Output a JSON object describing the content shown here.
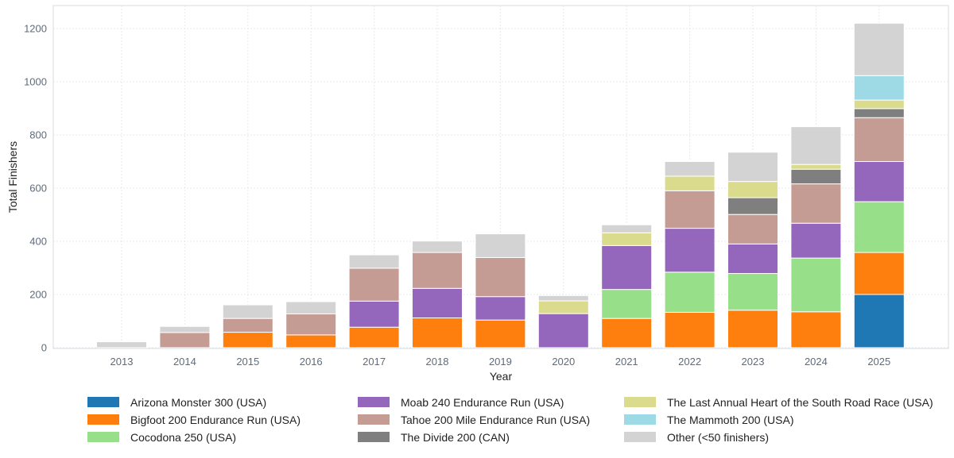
{
  "chart_data": {
    "type": "stacked-bar",
    "xlabel": "Year",
    "ylabel": "Total Finishers",
    "ylim": [
      0,
      1280
    ],
    "yticks": [
      0,
      200,
      400,
      600,
      800,
      1000,
      1200
    ],
    "grid": true,
    "legend_position": "bottom",
    "categories": [
      "2013",
      "2014",
      "2015",
      "2016",
      "2017",
      "2018",
      "2019",
      "2020",
      "2021",
      "2022",
      "2023",
      "2024",
      "2025"
    ],
    "series": [
      {
        "name": "Arizona Monster 300 (USA)",
        "color": "#1f77b4",
        "values": [
          0,
          0,
          0,
          0,
          0,
          0,
          0,
          0,
          0,
          0,
          0,
          0,
          200
        ]
      },
      {
        "name": "Bigfoot 200 Endurance Run (USA)",
        "color": "#ff7f0e",
        "values": [
          0,
          0,
          58,
          48,
          77,
          112,
          104,
          0,
          110,
          133,
          141,
          135,
          158
        ]
      },
      {
        "name": "Cocodona 250 (USA)",
        "color": "#98df8a",
        "values": [
          0,
          0,
          0,
          0,
          0,
          0,
          0,
          0,
          109,
          151,
          138,
          202,
          191
        ]
      },
      {
        "name": "Moab 240 Endurance Run (USA)",
        "color": "#9467bd",
        "values": [
          0,
          0,
          0,
          0,
          98,
          111,
          88,
          128,
          165,
          165,
          111,
          131,
          151
        ]
      },
      {
        "name": "Tahoe 200 Mile Endurance Run (USA)",
        "color": "#c49c94",
        "values": [
          0,
          57,
          52,
          79,
          124,
          135,
          147,
          0,
          0,
          141,
          111,
          148,
          165
        ]
      },
      {
        "name": "The Divide 200 (CAN)",
        "color": "#7f7f7f",
        "values": [
          0,
          0,
          0,
          0,
          0,
          0,
          0,
          0,
          0,
          0,
          63,
          55,
          34
        ]
      },
      {
        "name": "The Last Annual Heart of the South Road Race (USA)",
        "color": "#dbdb8d",
        "values": [
          0,
          0,
          0,
          0,
          0,
          0,
          0,
          48,
          48,
          55,
          61,
          18,
          32
        ]
      },
      {
        "name": "The Mammoth 200 (USA)",
        "color": "#9edae5",
        "values": [
          0,
          0,
          0,
          0,
          0,
          0,
          0,
          0,
          0,
          0,
          0,
          0,
          92
        ]
      },
      {
        "name": "Other (<50 finishers)",
        "color": "#d3d3d3",
        "values": [
          22,
          23,
          51,
          46,
          50,
          43,
          89,
          20,
          30,
          55,
          110,
          142,
          197
        ]
      }
    ]
  }
}
